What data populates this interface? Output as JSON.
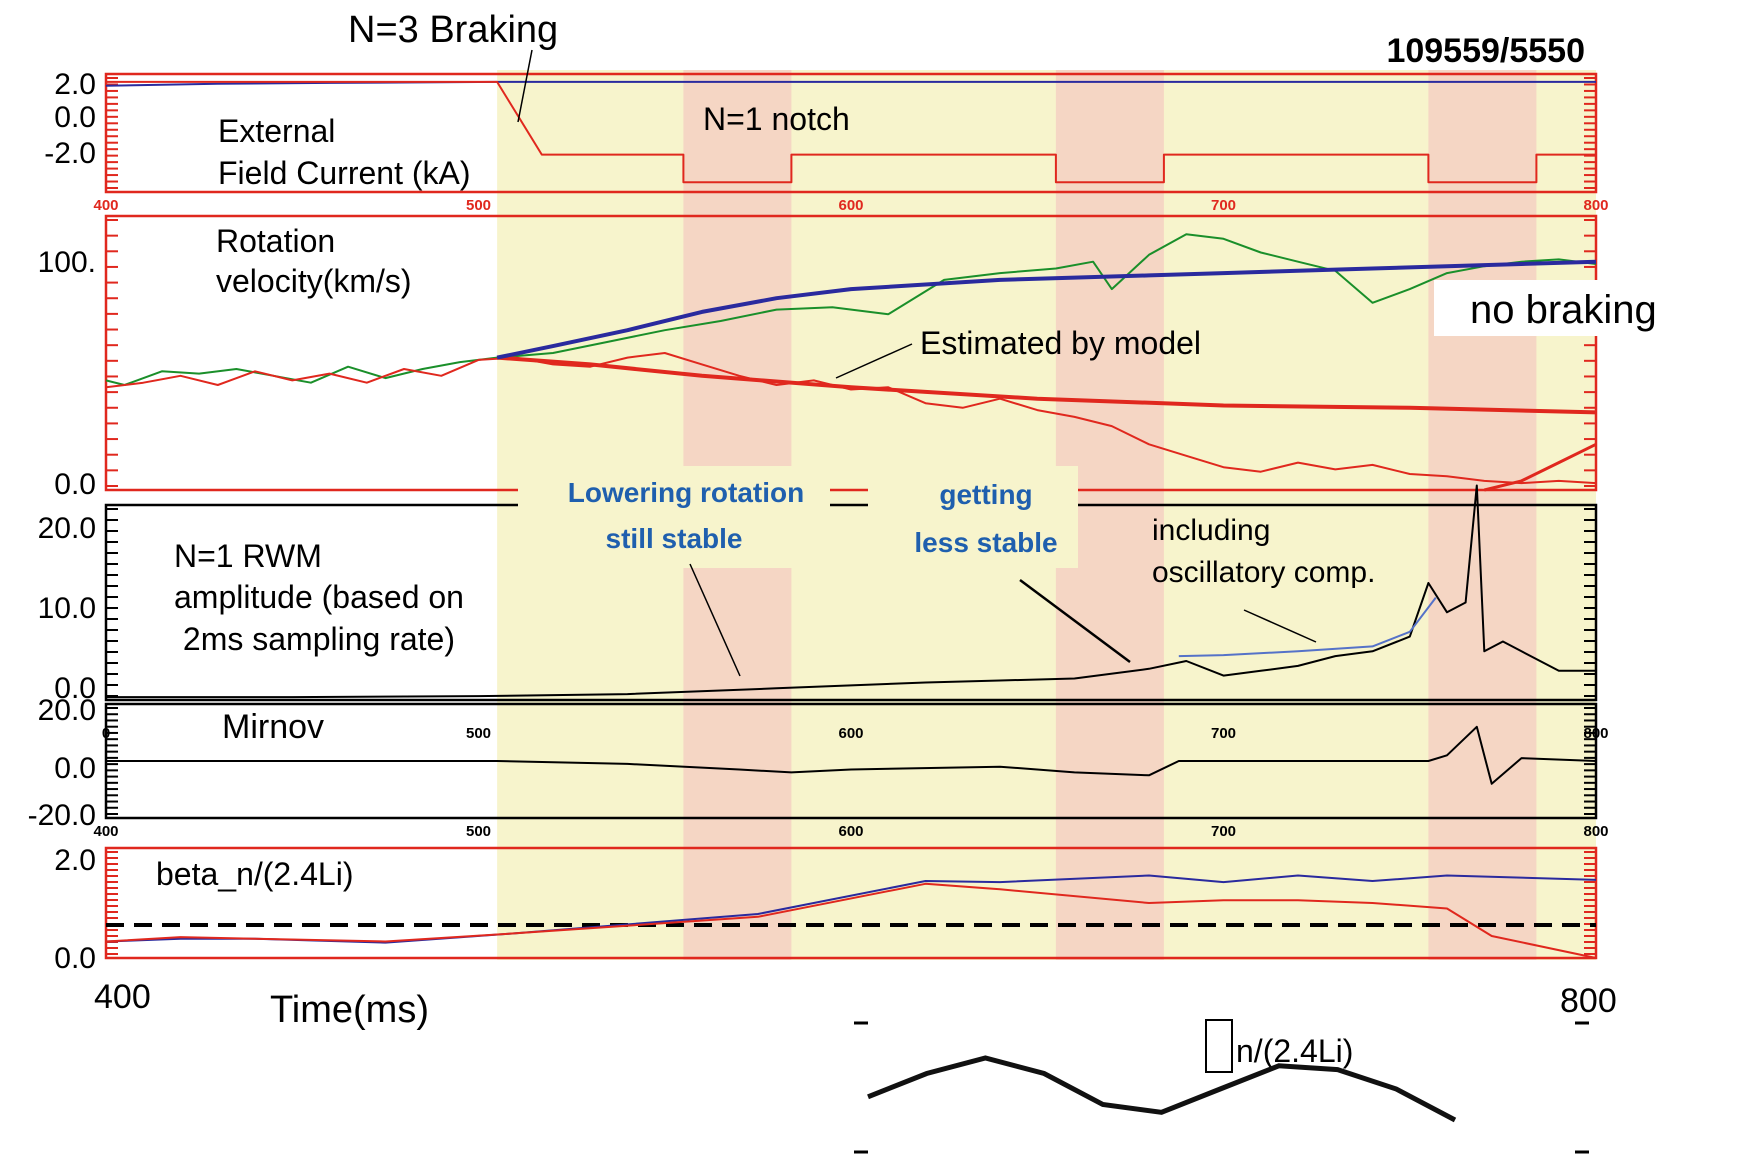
{
  "shot_id": "109559/5550",
  "top_annotation": "N=3 Braking",
  "time_axis": {
    "range": [
      400,
      800
    ],
    "start_label": "400",
    "end_label": "800",
    "title": "Time(ms)",
    "panel_ticks": [
      "400",
      "500",
      "600",
      "700",
      "800"
    ],
    "mirnov_ticks": [
      "0",
      "500",
      "600",
      "700",
      "800"
    ]
  },
  "colors": {
    "braking_band": "#f7f4cc",
    "notch_band": "#f5d6c4",
    "frame_red": "#e0281e",
    "blue": "#2a2a9e",
    "green": "#1a8f2a",
    "red": "#e0281e",
    "black": "#000000",
    "thin_blue": "#5572c8",
    "annotation_blue": "#1f5fae"
  },
  "regions": {
    "braking": [
      505,
      800
    ],
    "notches": [
      [
        555,
        584
      ],
      [
        655,
        684
      ],
      [
        755,
        784
      ]
    ]
  },
  "chart_data": [
    {
      "type": "line",
      "panel": "External Field Current",
      "label_lines": [
        "External",
        "Field Current (kA)"
      ],
      "annotation": "N=1 notch",
      "yticks": [
        "2.0",
        "0.0",
        "-2.0"
      ],
      "ylim": [
        -3.5,
        2.5
      ],
      "xlim": [
        400,
        800
      ],
      "series": [
        {
          "color": "blue",
          "x": [
            400,
            430,
            460,
            505,
            550,
            600,
            650,
            700,
            750,
            800
          ],
          "y": [
            1.9,
            2.0,
            2.05,
            2.1,
            2.1,
            2.1,
            2.1,
            2.1,
            2.1,
            2.1
          ]
        },
        {
          "color": "red",
          "x": [
            400,
            505,
            517,
            555,
            555,
            584,
            584,
            655,
            655,
            684,
            684,
            755,
            755,
            784,
            784,
            800
          ],
          "y": [
            2.1,
            2.1,
            -1.6,
            -1.6,
            -3.0,
            -3.0,
            -1.6,
            -1.6,
            -3.0,
            -3.0,
            -1.6,
            -1.6,
            -3.0,
            -3.0,
            -1.6,
            -1.6
          ]
        }
      ]
    },
    {
      "type": "line",
      "panel": "Rotation velocity",
      "label_lines": [
        "Rotation",
        "velocity(km/s)"
      ],
      "annotations": [
        "Estimated by model",
        "no braking"
      ],
      "yticks": [
        "100.",
        "0.0"
      ],
      "ylim": [
        0,
        120
      ],
      "xlim": [
        400,
        800
      ],
      "series": [
        {
          "color": "green",
          "x": [
            400,
            405,
            415,
            425,
            435,
            445,
            455,
            465,
            475,
            485,
            495,
            505,
            520,
            535,
            550,
            565,
            580,
            595,
            610,
            625,
            640,
            655,
            665,
            670,
            680,
            690,
            700,
            710,
            720,
            730,
            740,
            750,
            760,
            770,
            780,
            790,
            800
          ],
          "y": [
            48,
            46,
            52,
            51,
            53,
            50,
            47,
            54,
            49,
            53,
            56,
            58,
            60,
            65,
            70,
            74,
            79,
            80,
            77,
            92,
            95,
            97,
            100,
            88,
            103,
            112,
            110,
            104,
            100,
            96,
            82,
            88,
            95,
            98,
            100,
            101,
            99
          ]
        },
        {
          "color": "red",
          "x": [
            400,
            410,
            420,
            430,
            440,
            450,
            460,
            470,
            480,
            490,
            500,
            510,
            520,
            530,
            540,
            550,
            560,
            570,
            580,
            590,
            600,
            610,
            620,
            630,
            640,
            650,
            660,
            670,
            680,
            690,
            700,
            710,
            720,
            730,
            740,
            750,
            760,
            770,
            780,
            790,
            800
          ],
          "y": [
            45,
            47,
            50,
            46,
            52,
            48,
            51,
            47,
            53,
            50,
            57,
            58,
            55,
            54,
            58,
            60,
            55,
            50,
            46,
            48,
            44,
            45,
            38,
            36,
            40,
            35,
            32,
            28,
            20,
            15,
            10,
            8,
            12,
            9,
            11,
            7,
            6,
            4,
            3,
            4,
            3
          ]
        },
        {
          "color": "red",
          "width": 4,
          "x": [
            505,
            530,
            560,
            600,
            650,
            700,
            750,
            800
          ],
          "y": [
            58,
            55,
            50,
            45,
            40,
            37,
            36,
            34
          ]
        },
        {
          "color": "red",
          "width": 3,
          "x": [
            770,
            780,
            790,
            800
          ],
          "y": [
            0,
            4,
            12,
            20
          ]
        },
        {
          "color": "blue",
          "width": 4,
          "x": [
            505,
            520,
            540,
            560,
            580,
            600,
            620,
            640,
            660,
            680,
            700,
            720,
            740,
            760,
            780,
            800
          ],
          "y": [
            58,
            63,
            70,
            78,
            84,
            88,
            90,
            92,
            93,
            94,
            95,
            96,
            97,
            98,
            99,
            100
          ]
        }
      ]
    },
    {
      "type": "line",
      "panel": "N=1 RWM amplitude",
      "label_lines": [
        "N=1 RWM",
        "amplitude (based on",
        " 2ms sampling rate)"
      ],
      "annotations": [
        "Lowering rotation",
        "still stable",
        "getting",
        "less stable",
        "including",
        "oscillatory comp."
      ],
      "yticks": [
        "20.0",
        "10.0",
        "0.0"
      ],
      "ylim": [
        0,
        20
      ],
      "xlim": [
        400,
        800
      ],
      "series": [
        {
          "color": "black",
          "x": [
            400,
            450,
            500,
            540,
            580,
            600,
            620,
            640,
            660,
            680,
            690,
            700,
            710,
            720,
            730,
            740,
            750,
            755,
            760,
            765,
            768,
            770,
            775,
            780,
            790,
            800
          ],
          "y": [
            0.3,
            0.3,
            0.4,
            0.6,
            1.2,
            1.5,
            1.8,
            2.0,
            2.2,
            3.2,
            4.0,
            2.5,
            3.0,
            3.5,
            4.5,
            5.0,
            6.5,
            12,
            9,
            10,
            22,
            5,
            6,
            5,
            3,
            3
          ]
        },
        {
          "color": "thin_blue",
          "x": [
            688,
            700,
            720,
            740,
            750,
            757
          ],
          "y": [
            4.5,
            4.6,
            5.0,
            5.5,
            7.0,
            10.5
          ]
        }
      ]
    },
    {
      "type": "line",
      "panel": "Mirnov",
      "label_lines": [
        "Mirnov"
      ],
      "yticks": [
        "20.0",
        "0.0",
        "-20.0"
      ],
      "ylim": [
        -20,
        20
      ],
      "xlim": [
        400,
        800
      ],
      "series": [
        {
          "color": "black",
          "x": [
            400,
            450,
            505,
            540,
            570,
            584,
            600,
            640,
            660,
            680,
            688,
            700,
            720,
            740,
            755,
            760,
            768,
            772,
            780,
            800
          ],
          "y": [
            0,
            0,
            0,
            -1,
            -3,
            -4,
            -3,
            -2,
            -4,
            -5,
            0,
            0,
            0,
            0,
            0,
            2,
            12,
            -8,
            1,
            0
          ]
        }
      ]
    },
    {
      "type": "line",
      "panel": "beta_n/(2.4Li)",
      "label_lines": [
        "beta_n/(2.4Li)"
      ],
      "yticks": [
        "2.0",
        "0.0"
      ],
      "ylim": [
        0,
        2.0
      ],
      "xlim": [
        400,
        800
      ],
      "threshold": 0.6,
      "series": [
        {
          "color": "blue",
          "x": [
            400,
            420,
            440,
            475,
            510,
            575,
            620,
            640,
            680,
            700,
            720,
            740,
            760,
            800
          ],
          "y": [
            0.3,
            0.35,
            0.35,
            0.28,
            0.45,
            0.8,
            1.4,
            1.38,
            1.5,
            1.38,
            1.5,
            1.4,
            1.5,
            1.42
          ]
        },
        {
          "color": "red",
          "x": [
            400,
            420,
            440,
            475,
            510,
            575,
            620,
            640,
            680,
            700,
            720,
            740,
            760,
            772,
            800
          ],
          "y": [
            0.3,
            0.38,
            0.35,
            0.3,
            0.45,
            0.75,
            1.35,
            1.25,
            1.0,
            1.05,
            1.05,
            1.0,
            0.9,
            0.4,
            -0.2
          ]
        }
      ]
    }
  ],
  "inset": {
    "label": "n/(2.4Li)",
    "chart_data": {
      "type": "line",
      "x": [
        0,
        1,
        2,
        3,
        4,
        5,
        6,
        7,
        8,
        9,
        10
      ],
      "y": [
        0.3,
        0.6,
        0.8,
        0.6,
        0.2,
        0.1,
        0.4,
        0.7,
        0.65,
        0.4,
        0.0
      ]
    }
  }
}
